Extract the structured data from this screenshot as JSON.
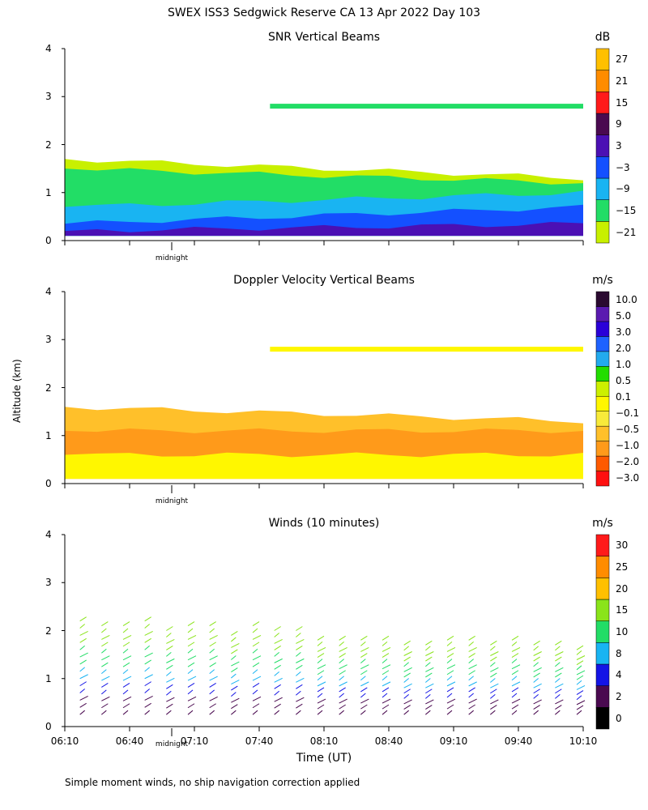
{
  "page_title": "SWEX ISS3 Sedgwick Reserve CA  13 Apr 2022 Day 103",
  "shared": {
    "ylabel": "Altitude (km)",
    "xlabel": "Time (UT)",
    "midnight_label": "midnight",
    "footnote": "Simple moment winds, no ship navigation correction applied"
  },
  "colors": {
    "snr_scale": [
      "#c8f000",
      "#22dd66",
      "#19b4f2",
      "#1450ff",
      "#4b10b4",
      "#4a0a50",
      "#ff1a1a",
      "#ff8c00",
      "#ffc000"
    ],
    "doppler_scale": [
      "#ff1010",
      "#ff5a00",
      "#ff9a1a",
      "#ffc02a",
      "#f8ea3a",
      "#fff700",
      "#ccf000",
      "#22dd00",
      "#22aaee",
      "#1e62ff",
      "#2a00d8",
      "#5a1ab0",
      "#2a0a30"
    ],
    "wind_scale": [
      "#000000",
      "#4a0a50",
      "#1414e6",
      "#19b4f2",
      "#22dd66",
      "#8ae41a",
      "#ffc000",
      "#ff8c00",
      "#ff1a1a"
    ]
  },
  "chart_data": [
    {
      "type": "heatmap",
      "title": "SNR Vertical Beams",
      "ylabel": "Altitude (km)",
      "ylim": [
        0,
        4
      ],
      "yticks": [
        "0",
        "1",
        "2",
        "3",
        "4"
      ],
      "xlim": [
        "06:10",
        "10:10"
      ],
      "units": "dB",
      "colorbar_labels": [
        "27",
        "21",
        "15",
        "9",
        "3",
        "−3",
        "−9",
        "−15",
        "−21"
      ],
      "colorbar_bins": [
        {
          "label": "-21",
          "color": "#c8f000"
        },
        {
          "label": "-15",
          "color": "#22dd66"
        },
        {
          "label": "-9",
          "color": "#19b4f2"
        },
        {
          "label": "-3",
          "color": "#1450ff"
        },
        {
          "label": "3",
          "color": "#4b10b4"
        },
        {
          "label": "9",
          "color": "#4a0a50"
        },
        {
          "label": "15",
          "color": "#ff1a1a"
        },
        {
          "label": "21",
          "color": "#ff8c00"
        },
        {
          "label": "27",
          "color": "#ffc000"
        }
      ],
      "layers": [
        {
          "alt_bottom": 0.1,
          "alt_top_start": 1.7,
          "alt_top_end": 1.3,
          "color": "#c8f000"
        },
        {
          "alt_bottom": 0.1,
          "alt_top_start": 1.5,
          "alt_top_end": 1.2,
          "color": "#22dd66"
        },
        {
          "alt_bottom": 0.1,
          "alt_top_start": 0.7,
          "alt_top_end": 1.0,
          "color": "#19b4f2"
        },
        {
          "alt_bottom": 0.1,
          "alt_top_start": 0.35,
          "alt_top_end": 0.7,
          "color": "#1450ff"
        },
        {
          "alt_bottom": 0.1,
          "alt_top_start": 0.2,
          "alt_top_end": 0.35,
          "color": "#4b10b4"
        }
      ],
      "features": [
        {
          "t_start": "07:45",
          "t_end": "10:10",
          "alt": 2.8,
          "color": "#22dd66"
        }
      ],
      "grid": false
    },
    {
      "type": "heatmap",
      "title": "Doppler Velocity Vertical Beams",
      "ylabel": "Altitude (km)",
      "ylim": [
        0,
        4
      ],
      "yticks": [
        "0",
        "1",
        "2",
        "3",
        "4"
      ],
      "xlim": [
        "06:10",
        "10:10"
      ],
      "units": "m/s",
      "colorbar_labels": [
        "10.0",
        "5.0",
        "3.0",
        "2.0",
        "1.0",
        "0.5",
        "0.1",
        "−0.1",
        "−0.5",
        "−1.0",
        "−2.0",
        "−3.0"
      ],
      "colorbar_bins": [
        {
          "label": "-3.0",
          "color": "#ff1010"
        },
        {
          "label": "-2.0",
          "color": "#ff5a00"
        },
        {
          "label": "-1.0",
          "color": "#ff9a1a"
        },
        {
          "label": "-0.5",
          "color": "#ffc02a"
        },
        {
          "label": "-0.1",
          "color": "#f8ea3a"
        },
        {
          "label": "0.1",
          "color": "#fff700"
        },
        {
          "label": "0.5",
          "color": "#ccf000"
        },
        {
          "label": "1.0",
          "color": "#22dd00"
        },
        {
          "label": "2.0",
          "color": "#22aaee"
        },
        {
          "label": "3.0",
          "color": "#1e62ff"
        },
        {
          "label": "5.0",
          "color": "#2a00d8"
        },
        {
          "label": "10.0",
          "color": "#5a1ab0"
        },
        {
          "label": "",
          "color": "#2a0a30"
        }
      ],
      "layers": [
        {
          "alt_bottom": 0.1,
          "alt_top_start": 1.6,
          "alt_top_end": 1.3,
          "color": "#ffc02a"
        },
        {
          "alt_bottom": 0.1,
          "alt_top_start": 1.1,
          "alt_top_end": 1.1,
          "color": "#ff9a1a"
        },
        {
          "alt_bottom": 0.1,
          "alt_top_start": 0.6,
          "alt_top_end": 0.6,
          "color": "#fff700"
        }
      ],
      "features": [
        {
          "t_start": "07:45",
          "t_end": "10:10",
          "alt": 2.8,
          "color": "#fff700"
        }
      ],
      "grid": false
    },
    {
      "type": "scatter",
      "title": "Winds (10 minutes)",
      "ylabel": "Altitude (km)",
      "xlabel": "Time (UT)",
      "ylim": [
        0,
        4
      ],
      "yticks": [
        "0",
        "1",
        "2",
        "3",
        "4"
      ],
      "xlim": [
        "06:10",
        "10:10"
      ],
      "xticks": [
        "06:10",
        "06:40",
        "07:10",
        "07:40",
        "08:10",
        "08:40",
        "09:10",
        "09:40",
        "10:10"
      ],
      "units": "m/s",
      "colorbar_labels": [
        "30",
        "25",
        "20",
        "15",
        "10",
        "8",
        "4",
        "2",
        "0"
      ],
      "colorbar_bins": [
        {
          "label": "0",
          "color": "#000000"
        },
        {
          "label": "2",
          "color": "#4a0a50"
        },
        {
          "label": "4",
          "color": "#1414e6"
        },
        {
          "label": "8",
          "color": "#19b4f2"
        },
        {
          "label": "10",
          "color": "#22dd66"
        },
        {
          "label": "15",
          "color": "#8ae41a"
        },
        {
          "label": "20",
          "color": "#ffc000"
        },
        {
          "label": "25",
          "color": "#ff8c00"
        },
        {
          "label": "30",
          "color": "#ff1a1a"
        }
      ],
      "profiles": [
        {
          "time": "06:17",
          "top_km": 2.2
        },
        {
          "time": "06:27",
          "top_km": 2.1
        },
        {
          "time": "06:37",
          "top_km": 2.1
        },
        {
          "time": "06:47",
          "top_km": 2.2
        },
        {
          "time": "06:57",
          "top_km": 2.0
        },
        {
          "time": "07:07",
          "top_km": 2.1
        },
        {
          "time": "07:17",
          "top_km": 2.1
        },
        {
          "time": "07:27",
          "top_km": 1.9
        },
        {
          "time": "07:37",
          "top_km": 2.1
        },
        {
          "time": "07:47",
          "top_km": 2.0
        },
        {
          "time": "07:57",
          "top_km": 2.0
        },
        {
          "time": "08:07",
          "top_km": 1.8
        },
        {
          "time": "08:17",
          "top_km": 1.8
        },
        {
          "time": "08:27",
          "top_km": 1.8
        },
        {
          "time": "08:37",
          "top_km": 1.8
        },
        {
          "time": "08:47",
          "top_km": 1.7
        },
        {
          "time": "08:57",
          "top_km": 1.7
        },
        {
          "time": "09:07",
          "top_km": 1.8
        },
        {
          "time": "09:17",
          "top_km": 1.8
        },
        {
          "time": "09:27",
          "top_km": 1.7
        },
        {
          "time": "09:37",
          "top_km": 1.8
        },
        {
          "time": "09:47",
          "top_km": 1.7
        },
        {
          "time": "09:57",
          "top_km": 1.7
        },
        {
          "time": "10:07",
          "top_km": 1.6
        }
      ],
      "grid": false
    }
  ]
}
